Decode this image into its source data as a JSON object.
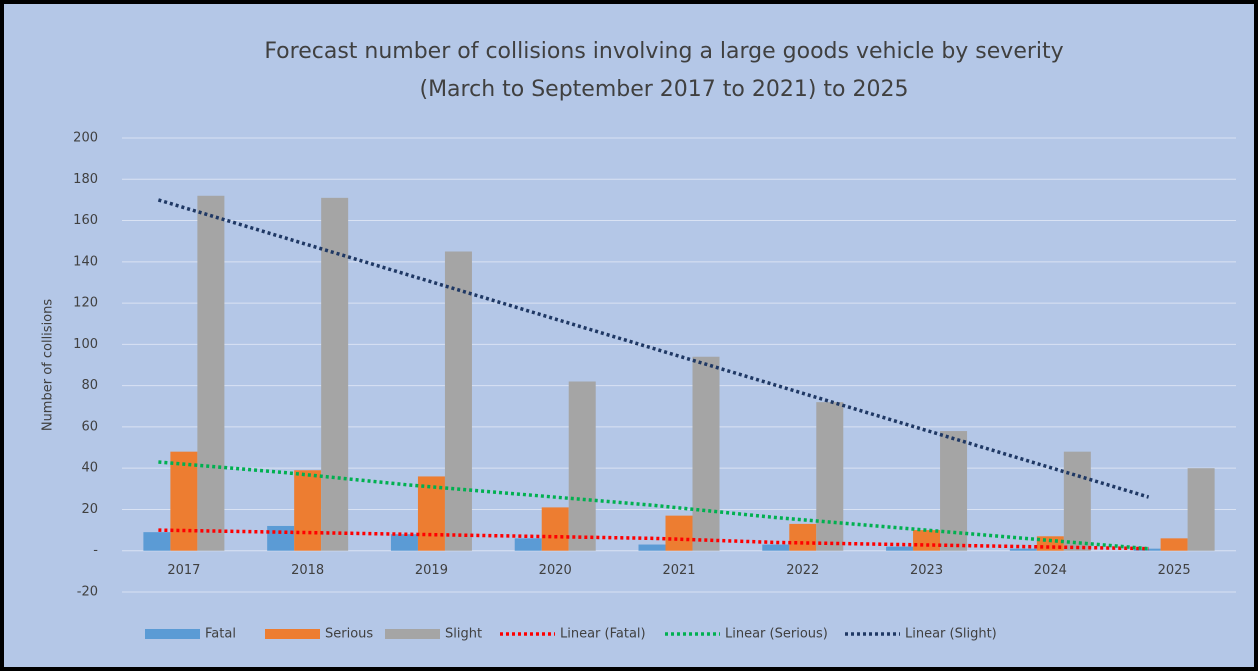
{
  "chart_data": {
    "type": "bar",
    "title": [
      "Forecast number of collisions involving a large goods vehicle by severity",
      "(March to September 2017 to 2021) to 2025"
    ],
    "y_label": "Number of collisions",
    "categories": [
      "2017",
      "2018",
      "2019",
      "2020",
      "2021",
      "2022",
      "2023",
      "2024",
      "2025"
    ],
    "series": [
      {
        "name": "Fatal",
        "color": "#5b9bd5",
        "values": [
          9,
          12,
          8,
          6,
          3,
          3,
          2,
          1,
          1
        ]
      },
      {
        "name": "Serious",
        "color": "#ed7d31",
        "values": [
          48,
          39,
          36,
          21,
          17,
          13,
          10,
          7,
          6
        ]
      },
      {
        "name": "Slight",
        "color": "#a5a5a5",
        "values": [
          172,
          171,
          145,
          82,
          94,
          72,
          58,
          48,
          40
        ]
      }
    ],
    "trendlines": [
      {
        "name": "Linear (Fatal)",
        "color": "#ff0000",
        "values": [
          10,
          9,
          8,
          7,
          6,
          4,
          3,
          2,
          1
        ]
      },
      {
        "name": "Linear (Serious)",
        "color": "#00b050",
        "values": [
          43,
          38,
          32,
          27,
          22,
          16,
          11,
          6,
          1
        ]
      },
      {
        "name": "Linear (Slight)",
        "color": "#1f3864",
        "values": [
          170,
          152,
          134,
          116,
          98,
          80,
          62,
          44,
          26
        ]
      }
    ],
    "ylim": [
      -20,
      200
    ],
    "yticks": [
      -20,
      {
        "value": 0,
        "label": "-"
      },
      20,
      40,
      60,
      80,
      100,
      120,
      140,
      160,
      180,
      200
    ],
    "grid": true
  }
}
